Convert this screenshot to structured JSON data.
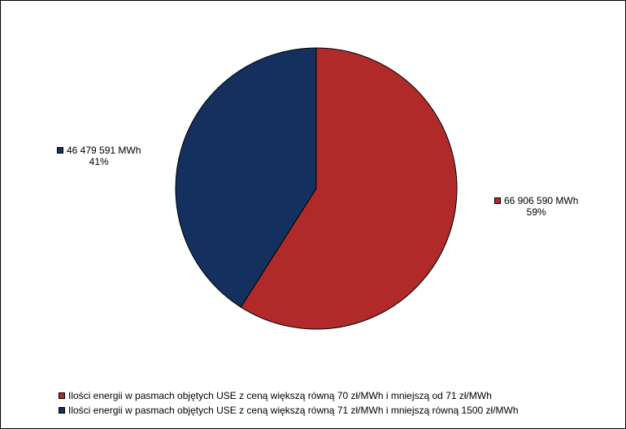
{
  "chart_data": {
    "type": "pie",
    "slices": [
      {
        "name": "Ilości energii w pasmach objętych USE z ceną większą równą 70 zł/MWh i mniejszą od 71 zł/MWh",
        "value": 66906590,
        "value_label": "66 906 590 MWh",
        "percent_label": "59%",
        "color": "#B02A2A"
      },
      {
        "name": "Ilości energii w pasmach objętych USE z ceną większą równą 71 zł/MWh i mniejszą równą 1500 zł/MWh",
        "value": 46479591,
        "value_label": "46 479 591 MWh",
        "percent_label": "41%",
        "color": "#13305E"
      }
    ],
    "start_angle_deg": 0,
    "direction": "clockwise",
    "legend": "bottom"
  }
}
